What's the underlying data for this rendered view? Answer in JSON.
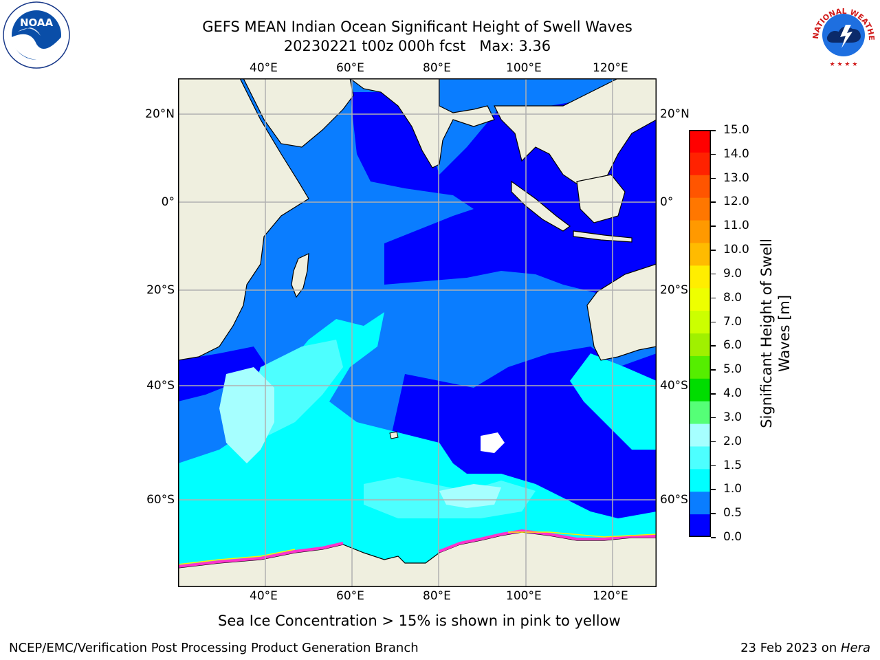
{
  "title": {
    "line1": "GEFS MEAN Indian Ocean Significant Height of Swell Waves",
    "line2": "20230221 t00z 000h fcst   Max: 3.36"
  },
  "map": {
    "lon_ticks_top": [
      "40°E",
      "60°E",
      "80°E",
      "100°E",
      "120°E"
    ],
    "lon_ticks_bottom": [
      "40°E",
      "60°E",
      "80°E",
      "100°E",
      "120°E"
    ],
    "lat_ticks_left": [
      "20°N",
      "0°",
      "20°S",
      "40°S",
      "60°S"
    ],
    "lat_ticks_right": [
      "20°N",
      "0°",
      "20°S",
      "40°S",
      "60°S"
    ],
    "colors": {
      "land": "#efefdf",
      "grid": "#b0b0b0",
      "swell_0_0_5": "#0000ff",
      "swell_0_5_1": "#0a7dff",
      "swell_1_1_5": "#00ffff",
      "swell_1_5_2": "#4dffff",
      "swell_2_3": "#a6ffff",
      "ice": "#ff33cc"
    }
  },
  "colorbar": {
    "ticks": [
      "15.0",
      "14.0",
      "13.0",
      "12.0",
      "11.0",
      "10.0",
      "9.0",
      "8.0",
      "7.0",
      "6.0",
      "5.0",
      "4.0",
      "3.0",
      "2.0",
      "1.5",
      "1.0",
      "0.5",
      "0.0"
    ],
    "colors": [
      "#ff0000",
      "#ff2200",
      "#ff5500",
      "#ff7700",
      "#ff9900",
      "#ffbb00",
      "#ffee00",
      "#eeff00",
      "#ccff00",
      "#a0f000",
      "#55ee00",
      "#00dd00",
      "#55ff77",
      "#a6ffff",
      "#4dffff",
      "#00ffff",
      "#0a7dff",
      "#0000ff"
    ],
    "label_line1": "Significant Height of Swell",
    "label_line2": "Waves [m]"
  },
  "note": "Sea Ice Concentration > 15% is shown in pink to yellow",
  "footer": {
    "left": "NCEP/EMC/Verification Post Processing Product Generation Branch",
    "right_date": "23 Feb 2023 on ",
    "right_host": "Hera"
  },
  "logos": {
    "noaa_text": "NOAA",
    "nws_text": "NATIONAL WEATHER SERVICE"
  }
}
